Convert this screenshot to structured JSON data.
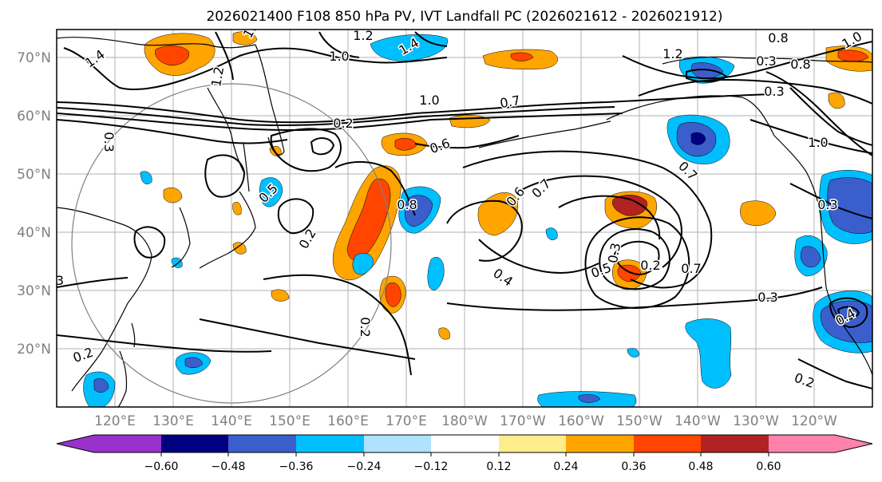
{
  "title": "2026021400 F108 850 hPa PV, IVT Landfall PC (2026021612 - 2026021912)",
  "map": {
    "lat_labels": [
      "70°N",
      "60°N",
      "50°N",
      "40°N",
      "30°N",
      "20°N"
    ],
    "lon_labels": [
      "120°E",
      "130°E",
      "140°E",
      "150°E",
      "160°E",
      "170°E",
      "180°W",
      "170°W",
      "160°W",
      "150°W",
      "140°W",
      "130°W",
      "120°W"
    ],
    "contour_labels": [
      "1.4",
      "1.2",
      "1.0",
      "1.4",
      "1.2",
      "1.0",
      "0.8",
      "1.0",
      "1.2",
      "1.0",
      "0.7",
      "0.8",
      "0.3",
      "0.3",
      "0.6",
      "0.7",
      "0.6",
      "0.8",
      "0.5",
      "0.2",
      "0.7",
      "0.3",
      "0.5",
      "0.2",
      "0.4",
      "0.7",
      "0.3",
      "0.2",
      "3",
      "0.2",
      "0.4",
      "0.2",
      "1.0",
      "0.3",
      "0.3",
      "0.2"
    ]
  },
  "colorbar": {
    "colors": [
      "#9932cc",
      "#000080",
      "#3a5fcd",
      "#00bfff",
      "#b0e2ff",
      "#ffffff",
      "#ffec8b",
      "#ffa500",
      "#ff4500",
      "#b22222",
      "#ff82ab"
    ],
    "tick_labels": [
      "−0.60",
      "−0.48",
      "−0.36",
      "−0.24",
      "−0.12",
      "0.12",
      "0.24",
      "0.36",
      "0.48",
      "0.60"
    ]
  }
}
